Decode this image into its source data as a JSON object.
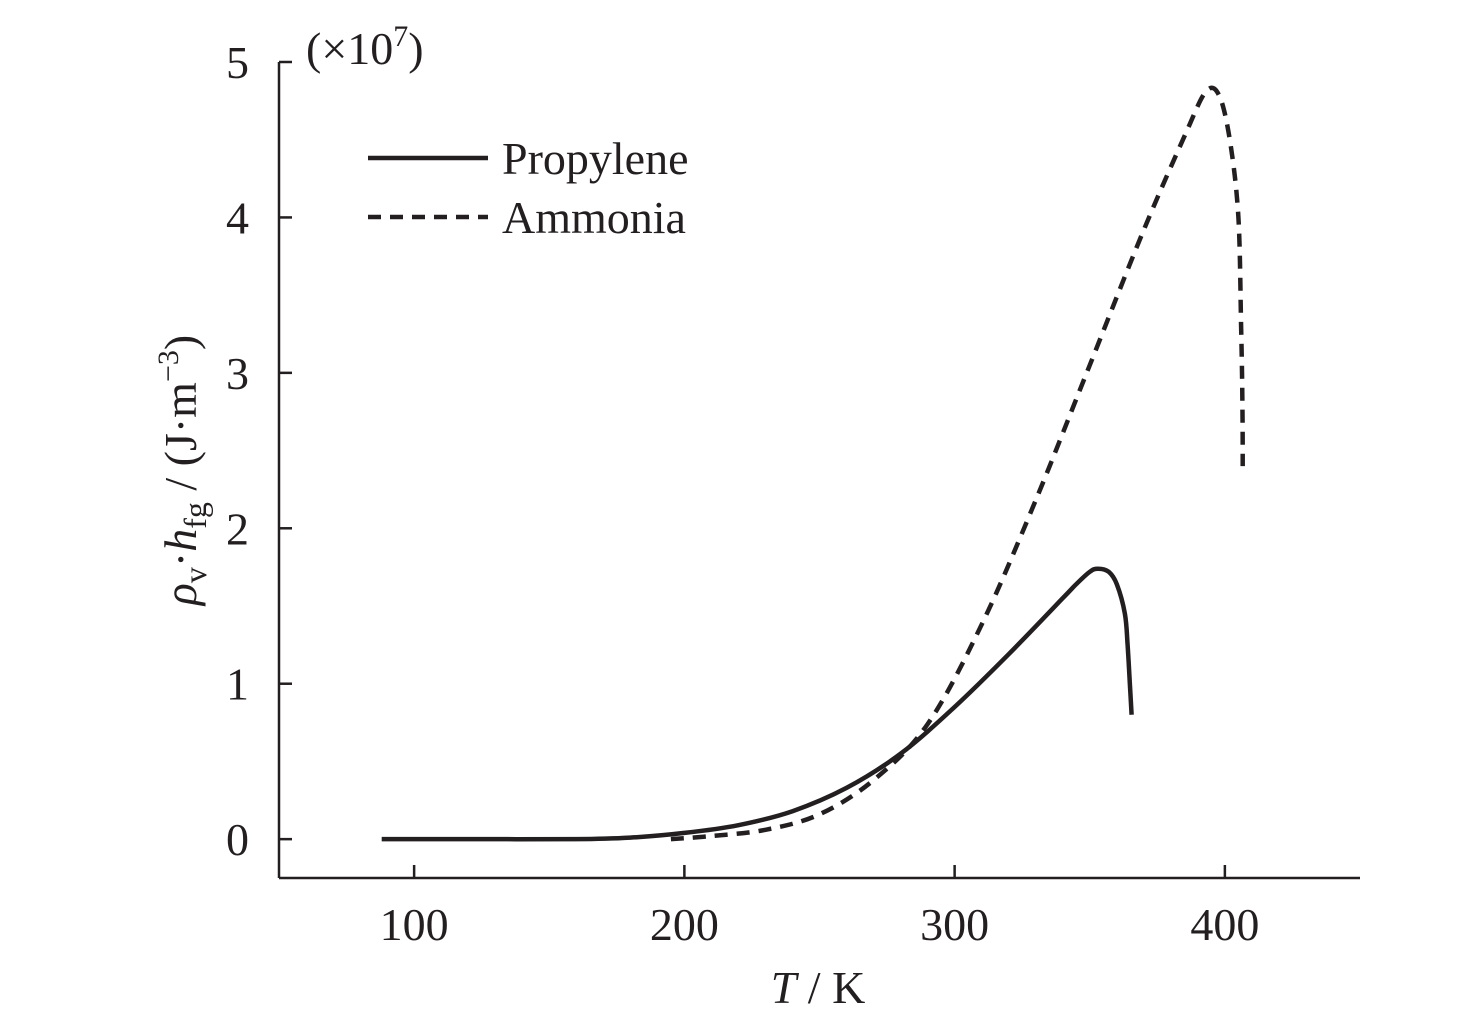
{
  "chart_data": {
    "type": "line",
    "title": "",
    "x_axis": {
      "label_italic": "T",
      "label_rest": " / K",
      "range": [
        50,
        450
      ],
      "ticks": [
        100,
        200,
        300,
        400
      ]
    },
    "y_axis": {
      "label_rho": "ρ",
      "label_rho_sub": "v",
      "label_dot": "·",
      "label_h": "h",
      "label_h_sub": "fg",
      "label_unit_pre": " / (J·m",
      "label_unit_sup": "−3",
      "label_unit_post": ")",
      "multiplier_pre": "(×10",
      "multiplier_exp": "7",
      "multiplier_post": ")",
      "range": [
        -0.25,
        5
      ],
      "ticks": [
        0,
        1,
        2,
        3,
        4,
        5
      ]
    },
    "grid": false,
    "legend": {
      "position": "top-left"
    },
    "series": [
      {
        "name": "Propylene",
        "style": "solid",
        "color": "#231f20",
        "points": [
          [
            88,
            0.0
          ],
          [
            120,
            0.0
          ],
          [
            160,
            0.0
          ],
          [
            180,
            0.01
          ],
          [
            200,
            0.04
          ],
          [
            220,
            0.09
          ],
          [
            240,
            0.18
          ],
          [
            260,
            0.33
          ],
          [
            280,
            0.55
          ],
          [
            300,
            0.85
          ],
          [
            320,
            1.19
          ],
          [
            340,
            1.55
          ],
          [
            345,
            1.64
          ],
          [
            350,
            1.72
          ],
          [
            353,
            1.74
          ],
          [
            357,
            1.72
          ],
          [
            360,
            1.64
          ],
          [
            363,
            1.45
          ],
          [
            364,
            1.25
          ],
          [
            365,
            0.95
          ],
          [
            365.5,
            0.8
          ]
        ]
      },
      {
        "name": "Ammonia",
        "style": "dashed",
        "color": "#231f20",
        "points": [
          [
            195,
            0.0
          ],
          [
            210,
            0.02
          ],
          [
            230,
            0.06
          ],
          [
            250,
            0.16
          ],
          [
            270,
            0.38
          ],
          [
            290,
            0.74
          ],
          [
            310,
            1.38
          ],
          [
            330,
            2.18
          ],
          [
            350,
            3.05
          ],
          [
            370,
            3.92
          ],
          [
            385,
            4.52
          ],
          [
            393,
            4.81
          ],
          [
            398,
            4.78
          ],
          [
            402,
            4.48
          ],
          [
            405,
            4.0
          ],
          [
            406,
            3.3
          ],
          [
            406.5,
            2.8
          ],
          [
            406.6,
            2.4
          ]
        ]
      }
    ]
  }
}
